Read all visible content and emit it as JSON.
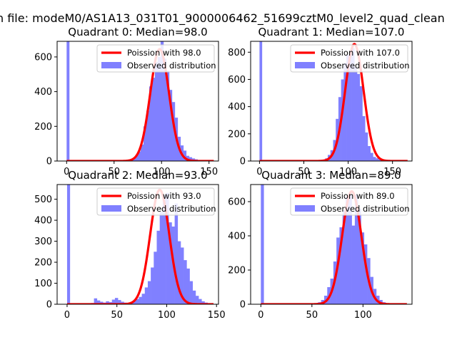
{
  "figure": {
    "suptitle": "n file: modeM0/AS1A13_031T01_9000006462_51699cztM0_level2_quad_clean"
  },
  "chart_data": [
    {
      "type": "bar",
      "title": "Quadrant 0: Median=98.0",
      "xlim": [
        -10,
        160
      ],
      "ylim": [
        0,
        690
      ],
      "xticks": [
        0,
        50,
        100,
        150
      ],
      "yticks": [
        0,
        200,
        400,
        600
      ],
      "legend_position": "upper-right",
      "legend": [
        "Poission with 98.0",
        "Observed distribution"
      ],
      "colors": {
        "poisson": "#ff0000",
        "observed": "#8080ff"
      },
      "spike": {
        "x": 0,
        "value": 690
      },
      "poisson_mean": 98.0,
      "poisson_peak": 645,
      "bins": {
        "start": 60,
        "width": 3,
        "values": [
          2,
          5,
          8,
          15,
          30,
          55,
          95,
          200,
          290,
          430,
          480,
          570,
          600,
          690,
          590,
          520,
          410,
          340,
          250,
          140,
          90,
          60,
          30,
          22,
          15,
          10,
          5,
          3
        ]
      }
    },
    {
      "type": "bar",
      "title": "Quadrant 1: Median=107.0",
      "xlim": [
        -10,
        172
      ],
      "ylim": [
        0,
        880
      ],
      "xticks": [
        0,
        50,
        100,
        150
      ],
      "yticks": [
        0,
        200,
        400,
        600,
        800
      ],
      "legend_position": "upper-right",
      "legend": [
        "Poission with 107.0",
        "Observed distribution"
      ],
      "colors": {
        "poisson": "#ff0000",
        "observed": "#8080ff"
      },
      "spike": {
        "x": 0,
        "value": 880
      },
      "poisson_mean": 107.0,
      "poisson_peak": 860,
      "bins": {
        "start": 65,
        "width": 3,
        "values": [
          3,
          6,
          10,
          20,
          45,
          80,
          155,
          310,
          470,
          600,
          720,
          780,
          790,
          830,
          690,
          640,
          550,
          330,
          210,
          110,
          60,
          30,
          20,
          12,
          8,
          4,
          2
        ]
      }
    },
    {
      "type": "bar",
      "title": "Quadrant 2: Median=93.0",
      "xlim": [
        -10,
        152
      ],
      "ylim": [
        0,
        570
      ],
      "xticks": [
        0,
        50,
        100,
        150
      ],
      "yticks": [
        0,
        100,
        200,
        300,
        400,
        500
      ],
      "legend_position": "upper-right",
      "legend": [
        "Poission with 93.0",
        "Observed distribution"
      ],
      "colors": {
        "poisson": "#ff0000",
        "observed": "#8080ff"
      },
      "spike": {
        "x": 0,
        "value": 570
      },
      "poisson_mean": 93.0,
      "poisson_peak": 545,
      "bins": {
        "start": 24,
        "width": 3,
        "values": [
          6,
          28,
          18,
          12,
          8,
          14,
          10,
          22,
          30,
          20,
          12,
          8,
          6,
          10,
          18,
          25,
          35,
          50,
          80,
          110,
          175,
          250,
          350,
          440,
          520,
          530,
          390,
          370,
          480,
          300,
          270,
          210,
          170,
          110,
          65,
          40,
          25,
          14,
          8,
          4
        ]
      }
    },
    {
      "type": "bar",
      "title": "Quadrant 3: Median=89.0",
      "xlim": [
        -10,
        148
      ],
      "ylim": [
        0,
        700
      ],
      "xticks": [
        0,
        50,
        100
      ],
      "yticks": [
        0,
        200,
        400,
        600
      ],
      "legend_position": "upper-right",
      "legend": [
        "Poission with 89.0",
        "Observed distribution"
      ],
      "colors": {
        "poisson": "#ff0000",
        "observed": "#8080ff"
      },
      "spike": {
        "x": 0,
        "value": 700
      },
      "poisson_mean": 89.0,
      "poisson_peak": 660,
      "bins": {
        "start": 50,
        "width": 3,
        "values": [
          3,
          5,
          12,
          25,
          50,
          100,
          150,
          250,
          390,
          450,
          550,
          630,
          640,
          460,
          640,
          560,
          420,
          350,
          270,
          160,
          90,
          50,
          25,
          12,
          6,
          3
        ]
      }
    }
  ]
}
